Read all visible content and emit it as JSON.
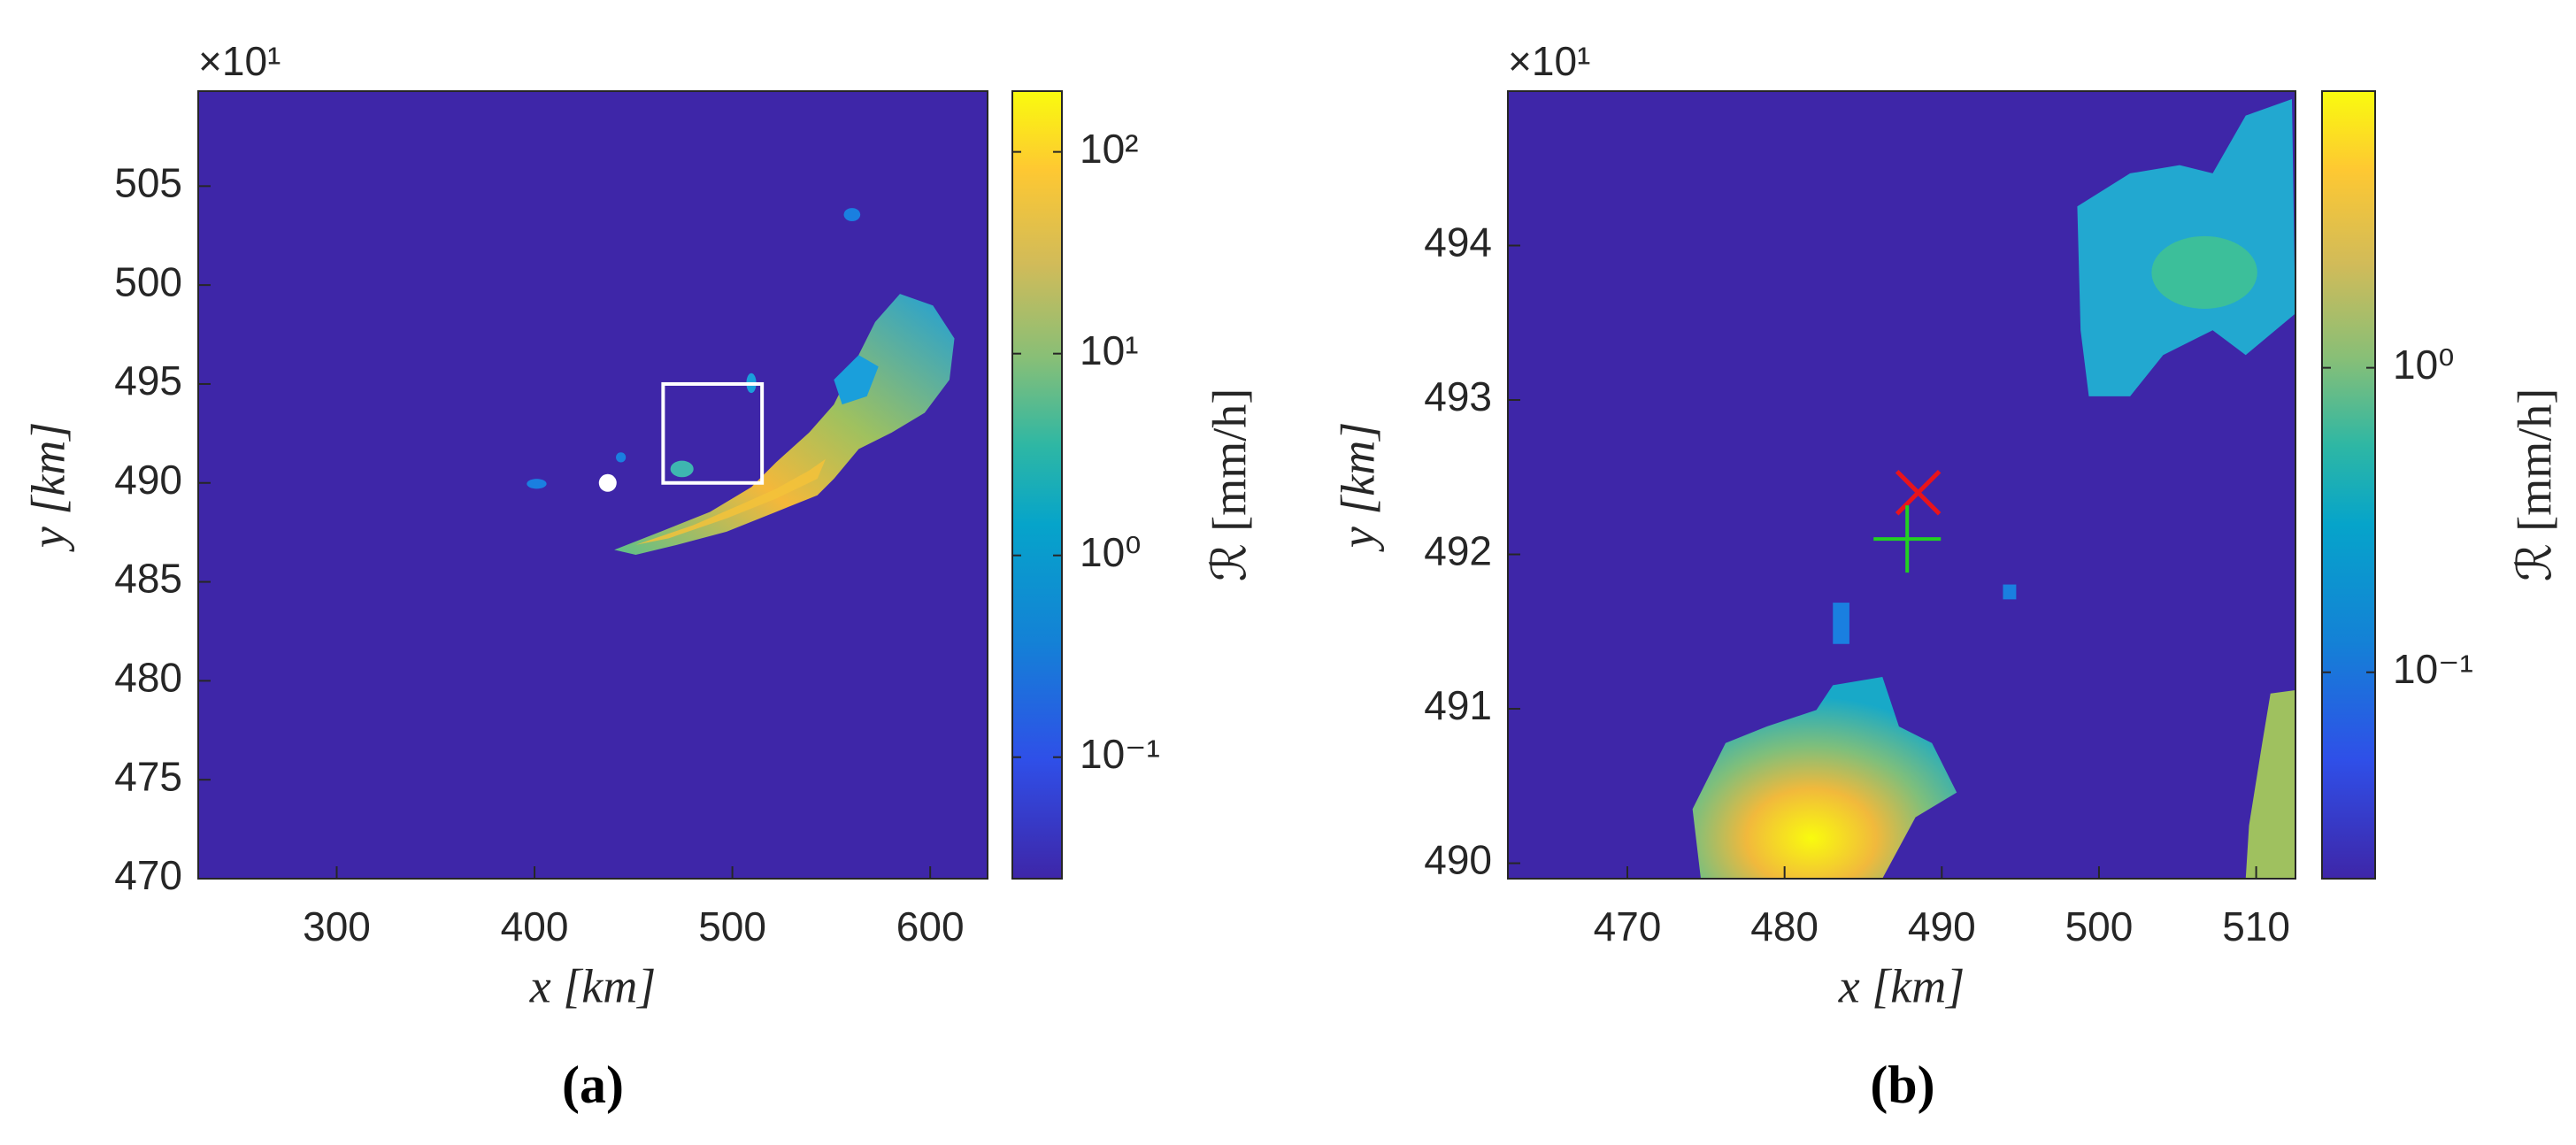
{
  "chart_data": [
    {
      "type": "heatmap",
      "panel_label": "(a)",
      "x_label": "x [km]",
      "y_label": "y [km]",
      "y_exponent": "×10¹",
      "xlim": [
        230,
        629
      ],
      "ylim": [
        470,
        509.8
      ],
      "xticks": [
        300,
        400,
        500,
        600
      ],
      "yticks": [
        470,
        475,
        480,
        485,
        490,
        495,
        500,
        505
      ],
      "background": "#3e26a8",
      "colorbar": {
        "label": "ℛ [mm/h]",
        "log_scale": true,
        "lim": [
          0.025,
          200
        ],
        "ticks": [
          {
            "value": 0.1,
            "label": "10⁻¹"
          },
          {
            "value": 1,
            "label": "10⁰"
          },
          {
            "value": 10,
            "label": "10¹"
          },
          {
            "value": 100,
            "label": "10²"
          }
        ]
      },
      "box": {
        "x": [
          465,
          515
        ],
        "y": [
          490,
          495
        ],
        "color": "#ffffff"
      },
      "markers": [
        {
          "x": 437,
          "y": 490,
          "color": "#ffffff",
          "symbol": "dot"
        }
      ]
    },
    {
      "type": "heatmap",
      "panel_label": "(b)",
      "x_label": "x [km]",
      "y_label": "y [km]",
      "y_exponent": "×10¹",
      "xlim": [
        462.4,
        512.5
      ],
      "ylim": [
        489.9,
        495
      ],
      "xticks": [
        470,
        480,
        490,
        500,
        510
      ],
      "yticks": [
        490,
        491,
        492,
        493,
        494
      ],
      "background": "#3e26a8",
      "colorbar": {
        "label": "ℛ [mm/h]",
        "log_scale": true,
        "lim": [
          0.021,
          8.1
        ],
        "ticks": [
          {
            "value": 0.1,
            "label": "10⁻¹"
          },
          {
            "value": 1,
            "label": "10⁰"
          }
        ]
      },
      "markers": [
        {
          "x": 488.5,
          "y": 492.4,
          "color": "#e8141c",
          "symbol": "x"
        },
        {
          "x": 487.8,
          "y": 492.1,
          "color": "#22d022",
          "symbol": "plus"
        }
      ]
    }
  ]
}
